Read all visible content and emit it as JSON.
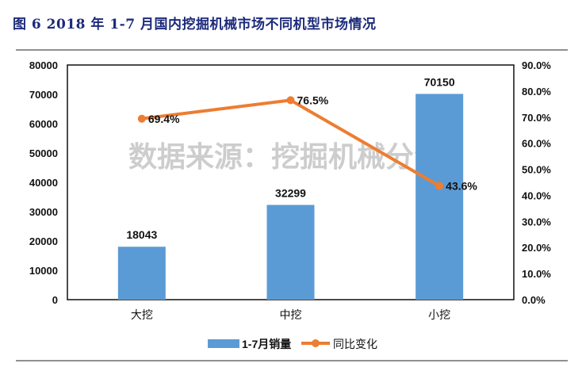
{
  "title": "图 6   2018 年 1-7 月国内挖掘机械市场不同机型市场情况",
  "watermark": "数据来源：挖掘机械分会",
  "colors": {
    "bar": "#5b9bd5",
    "line": "#ed7d31",
    "title": "#1c2a7a"
  },
  "chart_data": {
    "type": "bar+line",
    "categories": [
      "大挖",
      "中挖",
      "小挖"
    ],
    "series": [
      {
        "name": "1-7月销量",
        "type": "bar",
        "axis": "left",
        "values": [
          18043,
          32299,
          70150
        ],
        "labels": [
          "18043",
          "32299",
          "70150"
        ]
      },
      {
        "name": "同比变化",
        "type": "line",
        "axis": "right",
        "values": [
          69.4,
          76.5,
          43.6
        ],
        "labels": [
          "69.4%",
          "76.5%",
          "43.6%"
        ]
      }
    ],
    "ylim_left": [
      0,
      80000
    ],
    "ylim_right": [
      0,
      90
    ],
    "left_ticks": [
      "0",
      "10000",
      "20000",
      "30000",
      "40000",
      "50000",
      "60000",
      "70000",
      "80000"
    ],
    "right_ticks": [
      "0.0%",
      "10.0%",
      "20.0%",
      "30.0%",
      "40.0%",
      "50.0%",
      "60.0%",
      "70.0%",
      "80.0%",
      "90.0%"
    ],
    "legend_position": "bottom",
    "grid": false
  }
}
